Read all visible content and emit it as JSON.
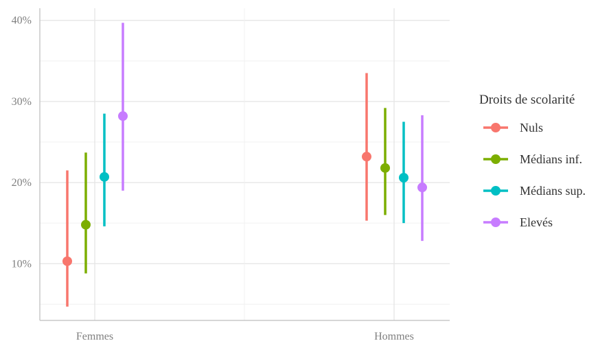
{
  "chart_data": {
    "type": "errorbar",
    "categories": [
      "Femmes",
      "Hommes"
    ],
    "ylim": [
      3,
      41.5
    ],
    "yticks": [
      10,
      20,
      30,
      40
    ],
    "ytick_labels": [
      "10%",
      "20%",
      "30%",
      "40%"
    ],
    "grid": true,
    "legend": {
      "title": "Droits de scolarité",
      "placement": "right"
    },
    "series": [
      {
        "name": "Nuls",
        "color": "#F8766D",
        "points": [
          {
            "category": "Femmes",
            "value": 10.3,
            "low": 4.7,
            "high": 21.5
          },
          {
            "category": "Hommes",
            "value": 23.2,
            "low": 15.3,
            "high": 33.5
          }
        ]
      },
      {
        "name": "Médians inf.",
        "color": "#7CAE00",
        "points": [
          {
            "category": "Femmes",
            "value": 14.8,
            "low": 8.8,
            "high": 23.7
          },
          {
            "category": "Hommes",
            "value": 21.8,
            "low": 16.0,
            "high": 29.2
          }
        ]
      },
      {
        "name": "Médians sup.",
        "color": "#00BFC4",
        "points": [
          {
            "category": "Femmes",
            "value": 20.7,
            "low": 14.6,
            "high": 28.5
          },
          {
            "category": "Hommes",
            "value": 20.6,
            "low": 15.0,
            "high": 27.5
          }
        ]
      },
      {
        "name": "Elevés",
        "color": "#C77CFF",
        "points": [
          {
            "category": "Femmes",
            "value": 28.2,
            "low": 19.0,
            "high": 39.7
          },
          {
            "category": "Hommes",
            "value": 19.4,
            "low": 12.8,
            "high": 28.3
          }
        ]
      }
    ]
  }
}
